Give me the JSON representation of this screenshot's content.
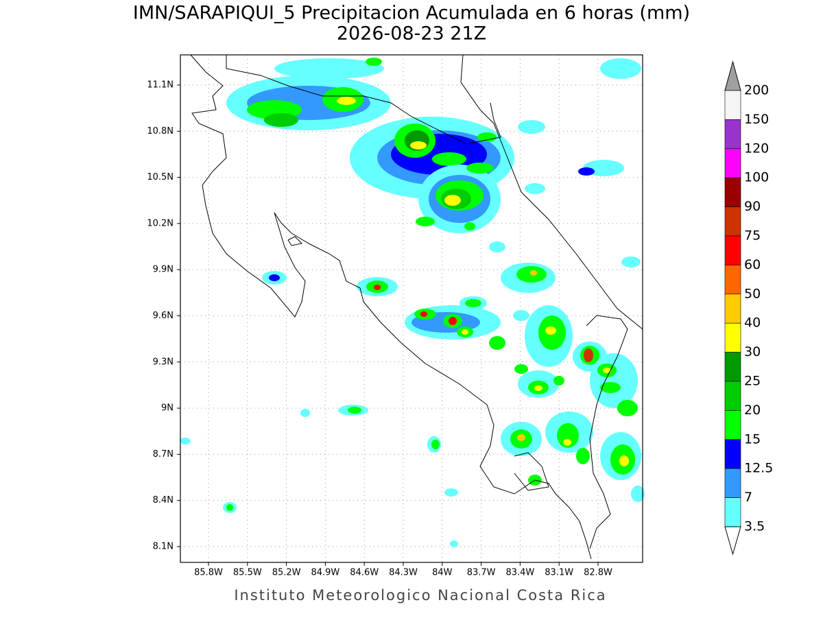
{
  "header": {
    "title": "IMN/SARAPIQUI_5 Precipitacion Acumulada en 6 horas (mm)",
    "subtitle": "2026-08-23 21Z"
  },
  "map": {
    "lat_labels": [
      "11.1N",
      "10.8N",
      "10.5N",
      "10.2N",
      "9.9N",
      "9.6N",
      "9.3N",
      "9N",
      "8.7N",
      "8.4N",
      "8.1N"
    ],
    "lon_labels": [
      "85.8W",
      "85.5W",
      "85.2W",
      "84.9W",
      "84.6W",
      "84.3W",
      "84W",
      "83.7W",
      "83.4W",
      "83.1W",
      "82.8W"
    ]
  },
  "colorbar": {
    "labels": [
      "200",
      "150",
      "120",
      "100",
      "90",
      "75",
      "60",
      "50",
      "40",
      "30",
      "25",
      "20",
      "15",
      "12.5",
      "7",
      "3.5"
    ],
    "colors": [
      "#f5f5f5",
      "#9933cc",
      "#ff00ff",
      "#990000",
      "#cc3300",
      "#ff0000",
      "#ff6600",
      "#ffcc00",
      "#ffff00",
      "#009900",
      "#00cc00",
      "#00ff00",
      "#0000ff",
      "#3399ff",
      "#66ffff"
    ],
    "over_color": "#a0a0a0",
    "under_color": "#ffffff"
  },
  "footer": "Instituto Meteorologico Nacional Costa Rica"
}
